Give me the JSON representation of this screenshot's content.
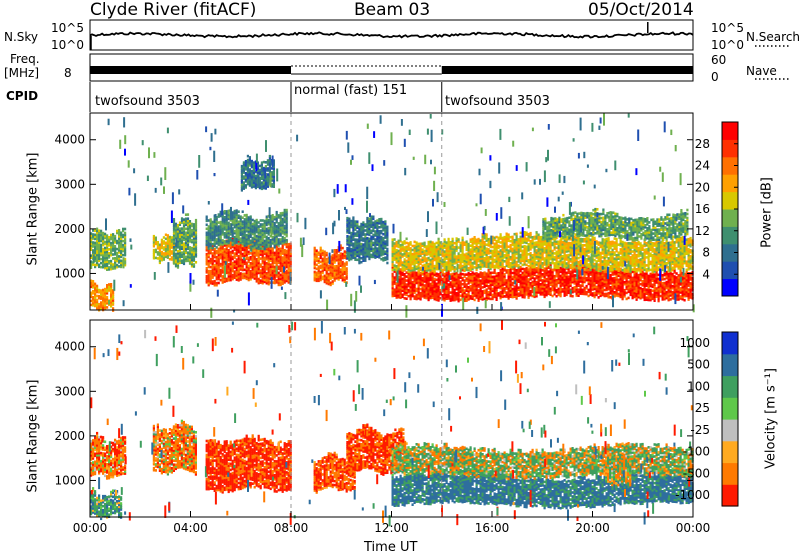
{
  "header": {
    "station": "Clyde River (fitACF)",
    "beam": "Beam 03",
    "date": "05/Oct/2014"
  },
  "status_panels": {
    "nsky_label": "N.Sky",
    "nsky_ticks": [
      "10^5",
      "10^0"
    ],
    "nsearch_label": "N.Search",
    "nsearch_ticks": [
      "10^5",
      "10^0"
    ],
    "freq_label": "Freq.",
    "freq_unit": "[MHz]",
    "freq_ticks": [
      "8"
    ],
    "nave_label": "Nave",
    "nave_ticks": [
      "60",
      "0"
    ],
    "cpid_label": "CPID",
    "cpid_segments": [
      {
        "name": "twofsound 3503",
        "start_hour": 0,
        "end_hour": 8
      },
      {
        "name": "normal (fast) 151",
        "start_hour": 8,
        "end_hour": 14
      },
      {
        "name": "twofsound 3503",
        "start_hour": 14,
        "end_hour": 24
      }
    ]
  },
  "chart_data": [
    {
      "type": "heatmap",
      "title": "",
      "xlabel": "Time UT",
      "ylabel": "Slant Range [km]",
      "xlim": [
        0,
        24
      ],
      "ylim": [
        180,
        4600
      ],
      "x_ticks": [
        "00:00",
        "04:00",
        "08:00",
        "12:00",
        "16:00",
        "20:00",
        "00:00"
      ],
      "y_ticks": [
        1000,
        2000,
        3000,
        4000
      ],
      "colorbar": {
        "label": "Power [dB]",
        "ticks": [
          28,
          24,
          20,
          16,
          12,
          8,
          4
        ],
        "range": [
          0,
          32
        ],
        "colors": [
          "#0000ff",
          "#1f4fb0",
          "#2f6f8f",
          "#3f8f6f",
          "#6fb04f",
          "#d8c800",
          "#ffa000",
          "#ff7000",
          "#ff3000",
          "#ff0000"
        ]
      },
      "echo_regions": [
        {
          "t_start": 0.0,
          "t_end": 1.4,
          "r_low": 1100,
          "r_high": 1900,
          "level": 14
        },
        {
          "t_start": 0.0,
          "t_end": 0.9,
          "r_low": 200,
          "r_high": 700,
          "level": 22
        },
        {
          "t_start": 2.5,
          "t_end": 3.3,
          "r_low": 1300,
          "r_high": 1800,
          "level": 18
        },
        {
          "t_start": 3.3,
          "t_end": 4.2,
          "r_low": 1200,
          "r_high": 2200,
          "level": 13
        },
        {
          "t_start": 4.6,
          "t_end": 8.0,
          "r_low": 800,
          "r_high": 1700,
          "level": 26
        },
        {
          "t_start": 4.6,
          "t_end": 7.8,
          "r_low": 1600,
          "r_high": 2300,
          "level": 11
        },
        {
          "t_start": 6.0,
          "t_end": 7.3,
          "r_low": 2900,
          "r_high": 3500,
          "level": 9
        },
        {
          "t_start": 8.9,
          "t_end": 10.2,
          "r_low": 800,
          "r_high": 1500,
          "level": 25
        },
        {
          "t_start": 10.2,
          "t_end": 11.8,
          "r_low": 1300,
          "r_high": 2200,
          "level": 9
        },
        {
          "t_start": 12.0,
          "t_end": 24.0,
          "r_low": 450,
          "r_high": 1100,
          "level": 28
        },
        {
          "t_start": 12.0,
          "t_end": 24.0,
          "r_low": 1100,
          "r_high": 1800,
          "level": 18
        },
        {
          "t_start": 18.0,
          "t_end": 23.8,
          "r_low": 1800,
          "r_high": 2300,
          "level": 13
        }
      ]
    },
    {
      "type": "heatmap",
      "title": "",
      "xlabel": "Time UT",
      "ylabel": "Slant Range [km]",
      "xlim": [
        0,
        24
      ],
      "ylim": [
        180,
        4600
      ],
      "x_ticks": [
        "00:00",
        "04:00",
        "08:00",
        "12:00",
        "16:00",
        "20:00",
        "00:00"
      ],
      "y_ticks": [
        1000,
        2000,
        3000,
        4000
      ],
      "colorbar": {
        "label": "Velocity [m s⁻¹]",
        "ticks": [
          "1000",
          "500",
          "100",
          "25",
          "-25",
          "-100",
          "-500",
          "-1000"
        ],
        "colors": [
          "#1030d0",
          "#2e6e9e",
          "#3f9f5f",
          "#5fc84a",
          "#bfbfbf",
          "#ffaa20",
          "#ff7a00",
          "#ff1a00"
        ]
      },
      "echo_regions": [
        {
          "t_start": 0.0,
          "t_end": 1.4,
          "r_low": 1100,
          "r_high": 1900,
          "velocity": -200
        },
        {
          "t_start": 0.0,
          "t_end": 1.2,
          "r_low": 200,
          "r_high": 700,
          "velocity": 200
        },
        {
          "t_start": 2.5,
          "t_end": 4.2,
          "r_low": 1200,
          "r_high": 2200,
          "velocity": -150
        },
        {
          "t_start": 4.6,
          "t_end": 8.0,
          "r_low": 800,
          "r_high": 1900,
          "velocity": -400
        },
        {
          "t_start": 8.9,
          "t_end": 10.5,
          "r_low": 800,
          "r_high": 1500,
          "velocity": -300
        },
        {
          "t_start": 10.2,
          "t_end": 12.5,
          "r_low": 1200,
          "r_high": 2100,
          "velocity": -350
        },
        {
          "t_start": 12.0,
          "t_end": 24.0,
          "r_low": 450,
          "r_high": 1100,
          "velocity": 400
        },
        {
          "t_start": 12.0,
          "t_end": 24.0,
          "r_low": 1100,
          "r_high": 1700,
          "velocity": 50
        },
        {
          "t_start": 20.5,
          "t_end": 21.5,
          "r_low": 900,
          "r_high": 1500,
          "velocity": 0
        }
      ]
    }
  ]
}
